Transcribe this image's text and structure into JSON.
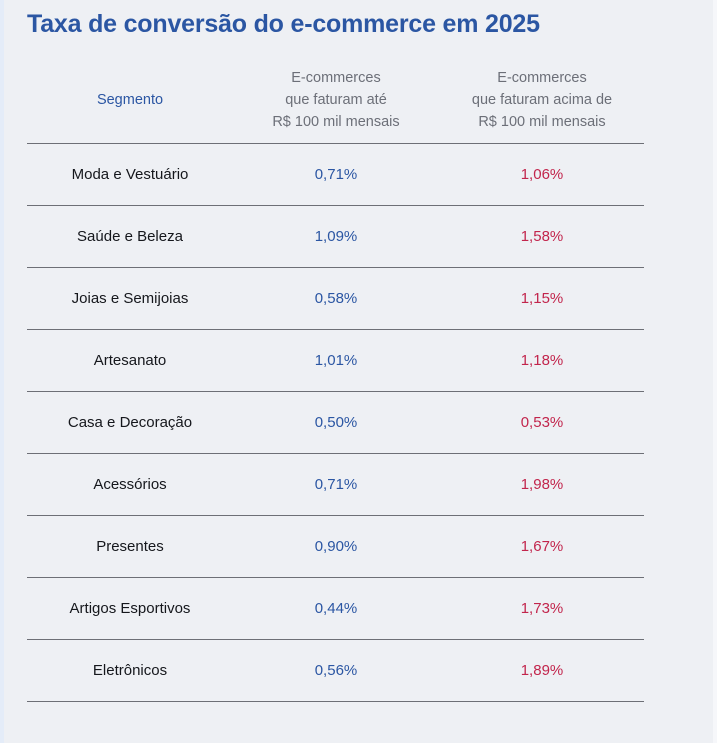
{
  "chart_data": {
    "type": "table",
    "title": "Taxa de conversão do e-commerce em 2025",
    "columns": [
      "Segmento",
      "E-commerces\nque faturam até\nR$ 100 mil mensais",
      "E-commerces\nque faturam acima de\nR$ 100 mil mensais"
    ],
    "rows": [
      {
        "segment": "Moda e Vestuário",
        "v1": "0,71%",
        "v2": "1,06%"
      },
      {
        "segment": "Saúde e Beleza",
        "v1": "1,09%",
        "v2": "1,58%"
      },
      {
        "segment": "Joias e Semijoias",
        "v1": "0,58%",
        "v2": "1,15%"
      },
      {
        "segment": "Artesanato",
        "v1": "1,01%",
        "v2": "1,18%"
      },
      {
        "segment": "Casa e Decoração",
        "v1": "0,50%",
        "v2": "0,53%"
      },
      {
        "segment": "Acessórios",
        "v1": "0,71%",
        "v2": "1,98%"
      },
      {
        "segment": "Presentes",
        "v1": "0,90%",
        "v2": "1,67%"
      },
      {
        "segment": "Artigos Esportivos",
        "v1": "0,44%",
        "v2": "1,73%"
      },
      {
        "segment": "Eletrônicos",
        "v1": "0,56%",
        "v2": "1,89%"
      }
    ],
    "colors": {
      "title": "#2b56a3",
      "under_100k": "#2b56a3",
      "over_100k": "#c2254c",
      "header_muted": "#6c6f78",
      "background": "#eef0f4"
    }
  }
}
